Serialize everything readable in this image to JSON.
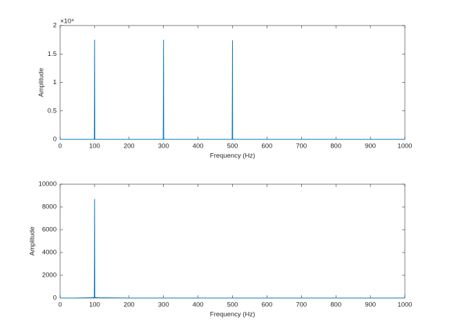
{
  "chart_data": [
    {
      "type": "line",
      "xlabel": "Frequency (Hz)",
      "ylabel": "Amplitude",
      "y_multiplier": "×10⁴",
      "xlim": [
        0,
        1000
      ],
      "xticks": [
        0,
        100,
        200,
        300,
        400,
        500,
        600,
        700,
        800,
        900,
        1000
      ],
      "ylim": [
        0,
        2
      ],
      "yticks": [
        0,
        0.5,
        1,
        1.5,
        2
      ],
      "series": [
        {
          "color": "#0072bd",
          "x": [
            0,
            98.5,
            99,
            99.5,
            100,
            100.5,
            101,
            298.5,
            299,
            299.5,
            300,
            300.5,
            301,
            498.5,
            499,
            499.5,
            500,
            500.5,
            501,
            1000
          ],
          "values": [
            0,
            0,
            0,
            0.7,
            1.75,
            0,
            0,
            0,
            0,
            0.72,
            1.75,
            0,
            0,
            0,
            0,
            0.74,
            1.74,
            0,
            0,
            0
          ]
        }
      ]
    },
    {
      "type": "line",
      "xlabel": "Frequency (Hz)",
      "ylabel": "Amplitude",
      "xlim": [
        0,
        1000
      ],
      "xticks": [
        0,
        100,
        200,
        300,
        400,
        500,
        600,
        700,
        800,
        900,
        1000
      ],
      "ylim": [
        0,
        10000
      ],
      "yticks": [
        0,
        2000,
        4000,
        6000,
        8000,
        10000
      ],
      "series": [
        {
          "color": "#0072bd",
          "x": [
            0,
            40,
            90,
            98.5,
            99,
            99.5,
            100,
            100.5,
            101,
            110,
            200,
            1000
          ],
          "values": [
            0,
            0,
            30,
            60,
            0,
            3500,
            8700,
            0,
            60,
            30,
            0,
            0
          ]
        }
      ]
    }
  ]
}
